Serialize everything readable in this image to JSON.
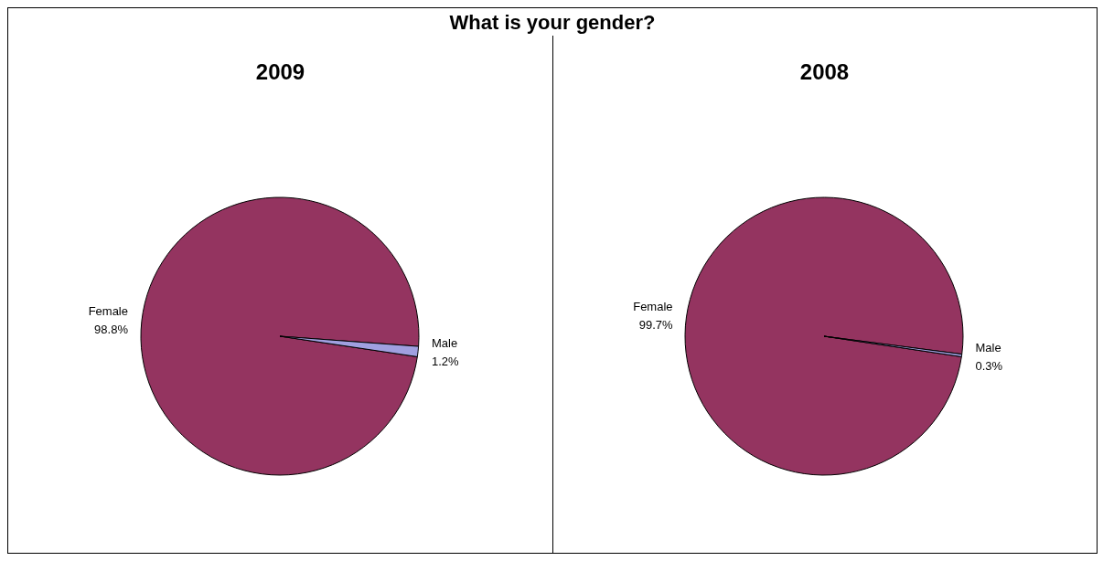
{
  "chart_data": [
    {
      "type": "pie",
      "title": "What is your gender?",
      "subtitle": "2009",
      "categories": [
        "Female",
        "Male"
      ],
      "values": [
        98.8,
        1.2
      ],
      "colors": [
        "#943460",
        "#a0a0e0"
      ],
      "value_labels": [
        "98.8%",
        "1.2%"
      ]
    },
    {
      "type": "pie",
      "subtitle": "2008",
      "categories": [
        "Female",
        "Male"
      ],
      "values": [
        99.7,
        0.3
      ],
      "colors": [
        "#943460",
        "#a0a0e0"
      ],
      "value_labels": [
        "99.7%",
        "0.3%"
      ]
    }
  ]
}
